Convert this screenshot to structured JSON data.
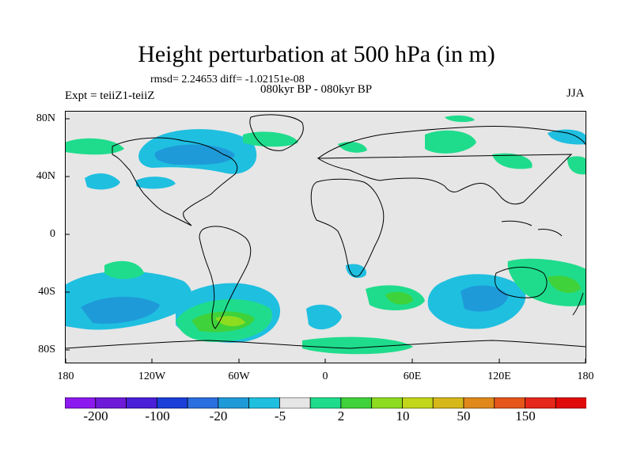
{
  "title": "Height perturbation at 500 hPa (in m)",
  "stats": "rmsd= 2.24653 diff= -1.02151e-08",
  "period": "080kyr BP - 080kyr BP",
  "experiment": "Expt = teiiZ1-teiiZ",
  "season": "JJA",
  "lat_labels": [
    "80N",
    "40N",
    "0",
    "40S",
    "80S"
  ],
  "lon_labels": [
    "180",
    "120W",
    "60W",
    "0",
    "60E",
    "120E",
    "180"
  ],
  "colorbar": {
    "colors": [
      "#8c1aee",
      "#6e1ad8",
      "#4a20d8",
      "#1b3fd8",
      "#2a6fe0",
      "#1f9ad8",
      "#1fbfe0",
      "#e6e6e6",
      "#1fdc8c",
      "#3fd23a",
      "#8edc1f",
      "#c2d61a",
      "#d6b81a",
      "#e0891a",
      "#e6561a",
      "#e6281a",
      "#e00a0a"
    ],
    "tick_labels": [
      "-200",
      "-100",
      "-20",
      "-5",
      "2",
      "10",
      "50",
      "150"
    ],
    "background_color": "#e6e6e6"
  }
}
